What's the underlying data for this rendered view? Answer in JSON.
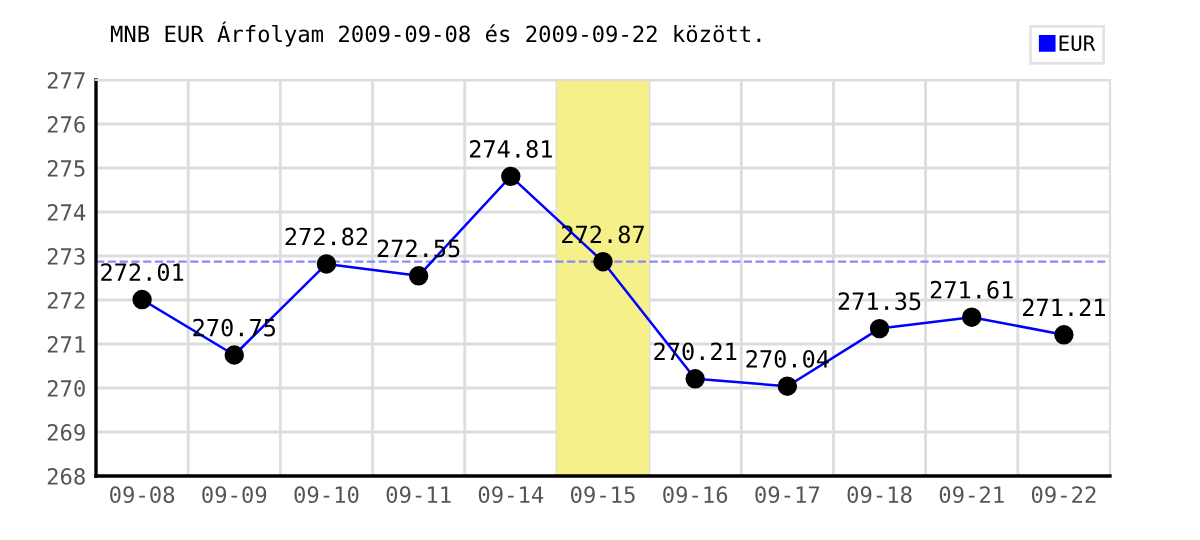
{
  "chart_data": {
    "type": "line",
    "title": "MNB EUR Árfolyam 2009-09-08 és 2009-09-22 között.",
    "categories": [
      "09-08",
      "09-09",
      "09-10",
      "09-11",
      "09-14",
      "09-15",
      "09-16",
      "09-17",
      "09-18",
      "09-21",
      "09-22"
    ],
    "series": [
      {
        "name": "EUR",
        "color": "#0000ff",
        "values": [
          272.01,
          270.75,
          272.82,
          272.55,
          274.81,
          272.87,
          270.21,
          270.04,
          271.35,
          271.61,
          271.21
        ]
      }
    ],
    "ylim": [
      268,
      277
    ],
    "yticks": [
      268,
      269,
      270,
      271,
      272,
      273,
      274,
      275,
      276,
      277
    ],
    "grid": true,
    "legend": "top right",
    "marker": "circle",
    "line_style": "solid",
    "data_labels": true,
    "ref_lines": [
      {
        "axis": "y",
        "value": 272.87,
        "color": "#8888ff",
        "line_style": "dashed"
      }
    ],
    "bands": [
      {
        "axis": "x",
        "from": "09-15",
        "to": "09-15",
        "color": "#f5f08a"
      }
    ]
  }
}
